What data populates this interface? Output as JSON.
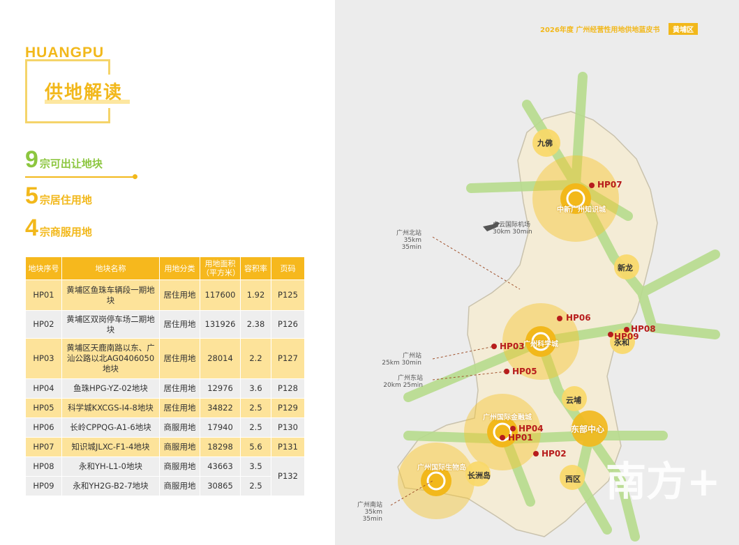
{
  "left": {
    "brand": "HUANGPU",
    "title": "供地解读",
    "stats": [
      {
        "num": "9",
        "text": "宗可出让地块"
      },
      {
        "num": "5",
        "text": "宗居住用地"
      },
      {
        "num": "4",
        "text": "宗商服用地"
      }
    ]
  },
  "table": {
    "headers": [
      "地块序号",
      "地块名称",
      "用地分类",
      "用地面积（平方米）",
      "容积率",
      "页码"
    ],
    "rows": [
      {
        "id": "HP01",
        "name": "黄埔区鱼珠车辆段一期地块",
        "type": "居住用地",
        "area": "117600",
        "far": "1.92",
        "page": "P125"
      },
      {
        "id": "HP02",
        "name": "黄埔区双岗停车场二期地块",
        "type": "居住用地",
        "area": "131926",
        "far": "2.38",
        "page": "P126"
      },
      {
        "id": "HP03",
        "name": "黄埔区天鹿南路以东、广汕公路以北AG0406050地块",
        "type": "居住用地",
        "area": "28014",
        "far": "2.2",
        "page": "P127"
      },
      {
        "id": "HP04",
        "name": "鱼珠HPG-YZ-02地块",
        "type": "居住用地",
        "area": "12976",
        "far": "3.6",
        "page": "P128"
      },
      {
        "id": "HP05",
        "name": "科学城KXCGS-I4-8地块",
        "type": "居住用地",
        "area": "34822",
        "far": "2.5",
        "page": "P129"
      },
      {
        "id": "HP06",
        "name": "长岭CPPQG-A1-6地块",
        "type": "商服用地",
        "area": "17940",
        "far": "2.5",
        "page": "P130"
      },
      {
        "id": "HP07",
        "name": "知识城JLXC-F1-4地块",
        "type": "商服用地",
        "area": "18298",
        "far": "5.6",
        "page": "P131"
      },
      {
        "id": "HP08",
        "name": "永和YH-L1-0地块",
        "type": "商服用地",
        "area": "43663",
        "far": "3.5",
        "page": "P132"
      },
      {
        "id": "HP09",
        "name": "永和YH2G-B2-7地块",
        "type": "商服用地",
        "area": "30865",
        "far": "2.5",
        "page": ""
      }
    ]
  },
  "map": {
    "header": "2026年度 广州经营性用地供地蓝皮书",
    "badge": "黄埔区",
    "places": {
      "jiufo": "九佛",
      "xinlong": "新龙",
      "yongdong": "永和",
      "yunpu": "云埔",
      "dongbu": "东部中心",
      "xiqu": "西区",
      "changzhou": "长洲岛",
      "zhongxin": "中新广州知识城",
      "kexue": "广州科学城",
      "guangzhouhe": "广州国际生物岛",
      "yuzhu": "广州国际金融城"
    },
    "plots": [
      "HP01",
      "HP02",
      "HP03",
      "HP04",
      "HP05",
      "HP06",
      "HP07",
      "HP08",
      "HP09"
    ],
    "stations": {
      "north_name": "广州北站",
      "north_time": "35km 35min",
      "airport_name": "白云国际机场",
      "airport_time": "30km 30min",
      "gz_name": "广州站",
      "gz_time": "25km 30min",
      "east_name": "广州东站",
      "east_time": "20km 25min",
      "south_name": "广州南站",
      "south_time": "35km 35min"
    },
    "watermark": "南方+",
    "colors": {
      "yellow": "#f2b81b",
      "green": "#8cc63f",
      "red": "#b71c1c"
    }
  }
}
